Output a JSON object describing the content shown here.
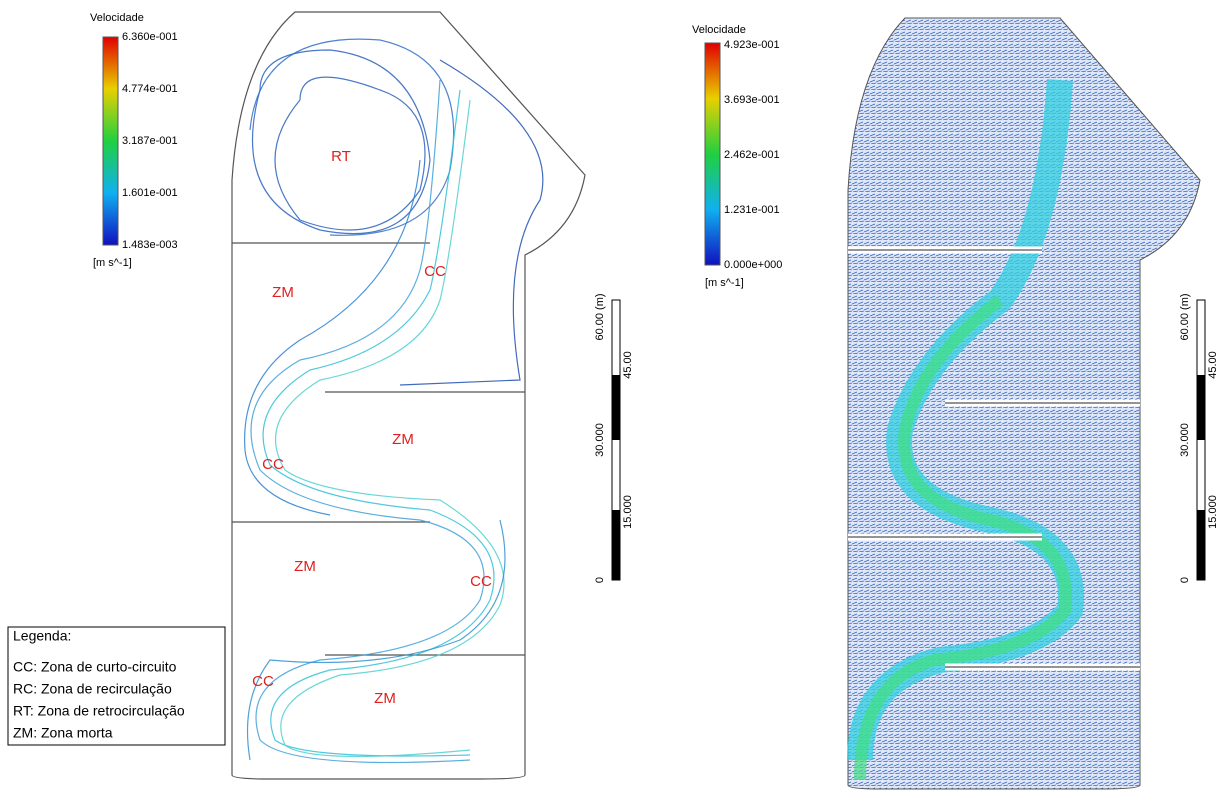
{
  "left_panel": {
    "colorbar": {
      "title": "Velocidade",
      "labels": [
        "6.360e-001",
        "4.774e-001",
        "3.187e-001",
        "1.601e-001",
        "1.483e-003"
      ],
      "unit": "[m s^-1]"
    },
    "zones": [
      "RT",
      "CC",
      "ZM",
      "ZM",
      "CC",
      "ZM",
      "CC",
      "CC",
      "ZM"
    ],
    "scale_bar": {
      "labels": [
        "60.00 (m)",
        "45.00",
        "30.000",
        "15.000",
        "0"
      ]
    }
  },
  "right_panel": {
    "colorbar": {
      "title": "Velocidade",
      "labels": [
        "4.923e-001",
        "3.693e-001",
        "2.462e-001",
        "1.231e-001",
        "0.000e+000"
      ],
      "unit": "[m s^-1]"
    },
    "scale_bar": {
      "labels": [
        "60.00 (m)",
        "45.00",
        "30.000",
        "15.000",
        "0"
      ]
    }
  },
  "legend": {
    "title": "Legenda:",
    "items": [
      "CC: Zona de curto-circuito",
      "RC: Zona de recirculação",
      "RT: Zona de retrocirculação",
      "ZM: Zona morta"
    ]
  }
}
